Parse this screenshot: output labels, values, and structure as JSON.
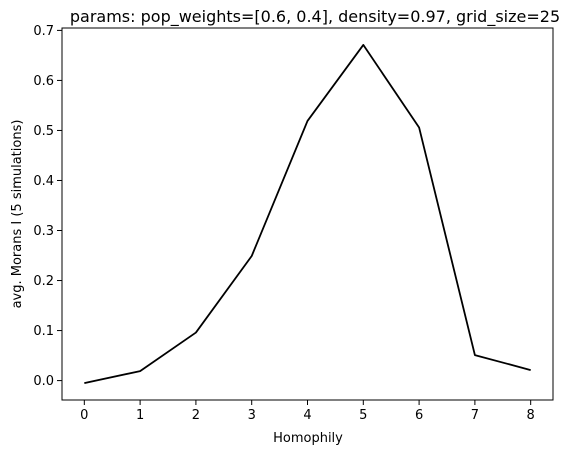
{
  "chart_data": {
    "type": "line",
    "title": "params: pop_weights=[0.6, 0.4], density=0.97, grid_size=25",
    "xlabel": "Homophily",
    "ylabel": "avg. Morans I (5 simulations)",
    "x": [
      0,
      1,
      2,
      3,
      4,
      5,
      6,
      7,
      8
    ],
    "series": [
      {
        "values": [
          -0.005,
          0.019,
          0.096,
          0.249,
          0.519,
          0.671,
          0.506,
          0.051,
          0.021
        ],
        "color": "#000000"
      }
    ],
    "xlim": [
      -0.4,
      8.4
    ],
    "ylim": [
      -0.0388,
      0.7048
    ],
    "xticks": [
      "0",
      "1",
      "2",
      "3",
      "4",
      "5",
      "6",
      "7",
      "8"
    ],
    "yticks": [
      "0.0",
      "0.1",
      "0.2",
      "0.3",
      "0.4",
      "0.5",
      "0.6",
      "0.7"
    ],
    "grid": false,
    "legend": "none"
  }
}
